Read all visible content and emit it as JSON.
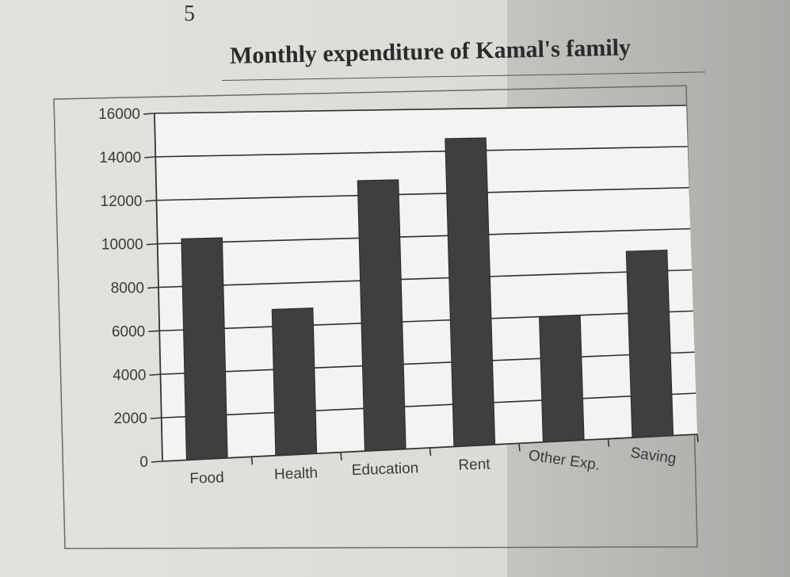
{
  "page": {
    "number": "5"
  },
  "chart_data": {
    "type": "bar",
    "title": "Monthly expenditure of Kamal's family",
    "xlabel": "",
    "ylabel": "",
    "categories": [
      "Food",
      "Health",
      "Education",
      "Rent",
      "Other Exp.",
      "Saving"
    ],
    "values": [
      10200,
      6800,
      12700,
      14600,
      6000,
      9000
    ],
    "ylim": [
      0,
      16000
    ],
    "yticks": [
      "0",
      "2000",
      "4000",
      "6000",
      "8000",
      "10000",
      "12000",
      "14000",
      "16000"
    ],
    "grid": true,
    "legend": "none",
    "colors": {
      "bar": "#3f3f3f",
      "grid": "#2e2e2e",
      "background": "#f4f4f2"
    }
  }
}
